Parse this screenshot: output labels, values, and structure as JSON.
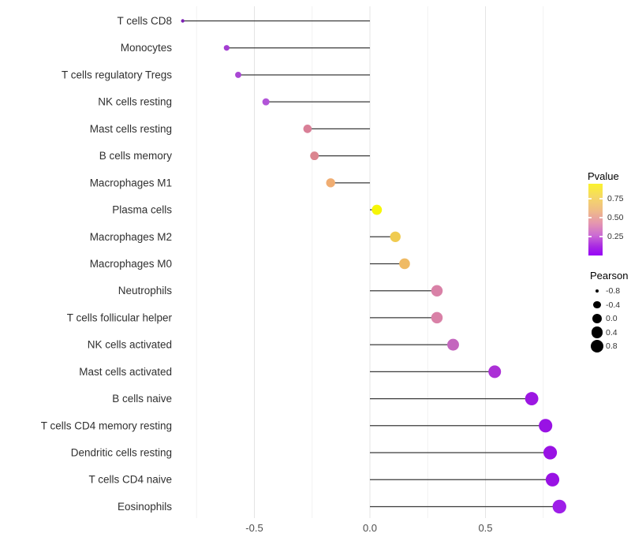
{
  "chart_data": {
    "type": "scatter",
    "variant": "lollipop",
    "title": "",
    "xlabel": "",
    "ylabel": "",
    "categories": [
      "T cells CD8",
      "Monocytes",
      "T cells regulatory  Tregs",
      "NK cells resting",
      "Mast cells resting",
      "B cells memory",
      "Macrophages M1",
      "Plasma cells",
      "Macrophages M2",
      "Macrophages M0",
      "Neutrophils",
      "T cells follicular helper",
      "NK cells activated",
      "Mast cells activated",
      "B cells naive",
      "T cells CD4 memory resting",
      "Dendritic cells resting",
      "T cells CD4 naive",
      "Eosinophils"
    ],
    "series": [
      {
        "name": "Pearson",
        "values": [
          -0.81,
          -0.62,
          -0.57,
          -0.45,
          -0.27,
          -0.24,
          -0.17,
          0.03,
          0.11,
          0.15,
          0.29,
          0.29,
          0.36,
          0.54,
          0.7,
          0.76,
          0.78,
          0.79,
          0.82
        ]
      }
    ],
    "point_colors": [
      "#7D22B4",
      "#A43ED2",
      "#A946D4",
      "#B254D8",
      "#D97F97",
      "#DB858F",
      "#F0AD72",
      "#F6F607",
      "#F0CB50",
      "#EFBA64",
      "#D981A7",
      "#D981A7",
      "#C466BE",
      "#AB30D6",
      "#9C17E2",
      "#9912E4",
      "#9912E4",
      "#9912E4",
      "#9E1FE8"
    ],
    "xlim": [
      -0.86,
      0.88
    ],
    "x_axis": {
      "major_ticks": [
        {
          "label": "-0.5",
          "value": -0.5
        },
        {
          "label": "0.0",
          "value": 0.0
        },
        {
          "label": "0.5",
          "value": 0.5
        }
      ],
      "minor_ticks": [
        -0.75,
        -0.25,
        0.25,
        0.75
      ]
    },
    "baseline_value": 0.0,
    "stick_color": "#3A3A3A",
    "grid": "vertical-only",
    "legends": {
      "pvalue": {
        "title": "Pvalue",
        "position": "right",
        "ticks": [
          {
            "label": "0.75",
            "value": 0.75
          },
          {
            "label": "0.50",
            "value": 0.5
          },
          {
            "label": "0.25",
            "value": 0.25
          }
        ],
        "range": [
          0.0,
          0.95
        ],
        "gradient_top_to_bottom": [
          "#FBF22D",
          "#F0BE85",
          "#E596AF",
          "#CB6BD4",
          "#9704F8"
        ]
      },
      "pearson": {
        "title": "Pearson",
        "position": "right",
        "entries": [
          {
            "label": "-0.8",
            "value": -0.8
          },
          {
            "label": "-0.4",
            "value": -0.4
          },
          {
            "label": "0.0",
            "value": 0.0
          },
          {
            "label": "0.4",
            "value": 0.4
          },
          {
            "label": "0.8",
            "value": 0.8
          }
        ],
        "dot_color": "#000000"
      }
    },
    "colors": {
      "background": "#FFFFFF",
      "grid_major": "#E4E4E4",
      "grid_minor": "#F1F1F1",
      "axis_tick_text": "#4D4D4D",
      "category_text": "#303030"
    }
  }
}
